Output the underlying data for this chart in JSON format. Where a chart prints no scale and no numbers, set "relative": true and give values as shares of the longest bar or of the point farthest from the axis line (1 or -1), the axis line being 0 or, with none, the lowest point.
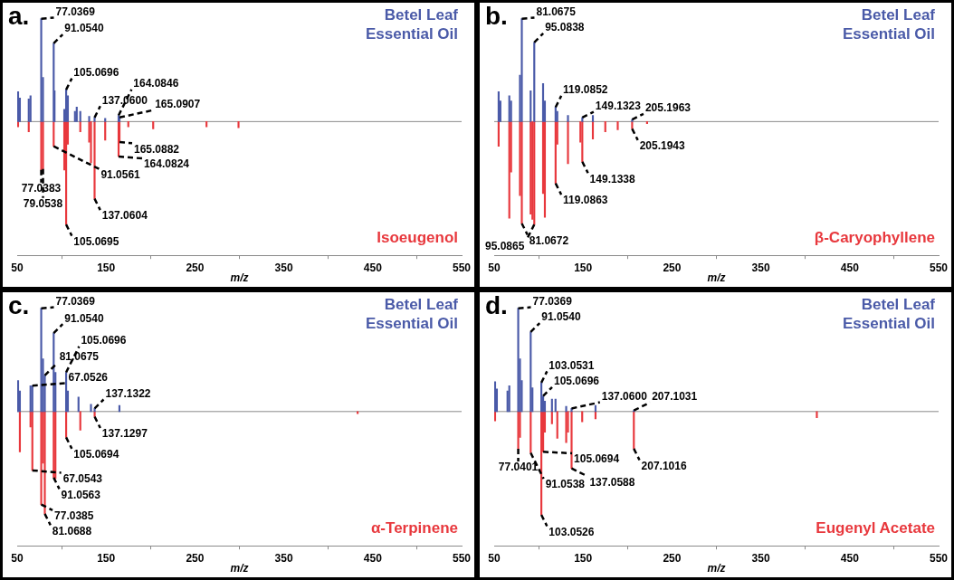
{
  "chart_data": [
    {
      "type": "bar",
      "title": "a.",
      "xlabel": "m/z",
      "relative": true,
      "xlim": [
        50,
        550
      ],
      "xticks": [
        50,
        150,
        250,
        350,
        450,
        550
      ],
      "series": [
        {
          "name": "Betel Leaf Essential Oil",
          "color": "#4a5aa8",
          "x": [
            51,
            53,
            63,
            65,
            77.0369,
            79,
            91.054,
            92,
            103,
            105.0696,
            107,
            115,
            117,
            121,
            131,
            137.06,
            149,
            164.0846,
            165.0907
          ],
          "values": [
            0.29,
            0.23,
            0.22,
            0.25,
            1,
            0.43,
            0.76,
            0.3,
            0.12,
            0.31,
            0.25,
            0.1,
            0.14,
            0.1,
            0.05,
            0.04,
            0.03,
            0.06,
            0.04
          ]
        },
        {
          "name": "Isoeugenol",
          "color": "#e8383d",
          "x": [
            51,
            63,
            77.0383,
            79.0538,
            91.0561,
            103,
            105.0695,
            107,
            121,
            131,
            133,
            137.0604,
            149,
            164.0824,
            165.0882,
            175,
            203,
            263,
            299
          ],
          "values": [
            -0.05,
            -0.1,
            -0.47,
            -0.46,
            -0.24,
            -0.47,
            -1,
            -0.22,
            -0.1,
            -0.2,
            -0.4,
            -0.75,
            -0.18,
            -0.34,
            -0.2,
            -0.05,
            -0.07,
            -0.05,
            -0.06
          ]
        }
      ],
      "annotations": [
        {
          "text": "77.0369",
          "x": 77.0369,
          "y": 1
        },
        {
          "text": "91.0540",
          "x": 91.054,
          "y": 0.76
        },
        {
          "text": "105.0696",
          "x": 105.0696,
          "y": 0.31
        },
        {
          "text": "137.0600",
          "x": 137.06,
          "y": 0.04
        },
        {
          "text": "164.0846",
          "x": 164.0846,
          "y": 0.06
        },
        {
          "text": "165.0907",
          "x": 165.0907,
          "y": 0.04
        },
        {
          "text": "105.0695",
          "x": 105.0695,
          "y": -1
        },
        {
          "text": "137.0604",
          "x": 137.0604,
          "y": -0.75
        },
        {
          "text": "77.0383",
          "x": 77.0383,
          "y": -0.47
        },
        {
          "text": "79.0538",
          "x": 79.0538,
          "y": -0.46
        },
        {
          "text": "91.0561",
          "x": 91.0561,
          "y": -0.24
        },
        {
          "text": "164.0824",
          "x": 164.0824,
          "y": -0.34
        },
        {
          "text": "165.0882",
          "x": 165.0882,
          "y": -0.2
        }
      ]
    },
    {
      "type": "bar",
      "title": "b.",
      "xlabel": "m/z",
      "relative": true,
      "xlim": [
        50,
        550
      ],
      "xticks": [
        50,
        150,
        250,
        350,
        450,
        550
      ],
      "series": [
        {
          "name": "Betel Leaf Essential Oil",
          "color": "#4a5aa8",
          "x": [
            55,
            57,
            67,
            69,
            79,
            81.0675,
            91,
            95.0838,
            105,
            107,
            119.0852,
            121,
            133,
            149.1323,
            161,
            205.1963
          ],
          "values": [
            0.29,
            0.2,
            0.25,
            0.2,
            0.45,
            1,
            0.3,
            0.77,
            0.37,
            0.2,
            0.14,
            0.1,
            0.06,
            0.04,
            0.06,
            0.02
          ]
        },
        {
          "name": "β-Caryophyllene",
          "color": "#e8383d",
          "x": [
            55,
            67,
            69,
            79,
            81.0672,
            91,
            93,
            95.0865,
            105,
            107,
            119.0863,
            121,
            133,
            147,
            149.1338,
            161,
            175,
            189,
            205.1943,
            222
          ],
          "values": [
            -0.24,
            -0.94,
            -0.49,
            -0.72,
            -0.99,
            -0.9,
            -0.95,
            -1,
            -0.7,
            -0.93,
            -0.6,
            -0.22,
            -0.41,
            -0.2,
            -0.39,
            -0.17,
            -0.1,
            -0.08,
            -0.07,
            -0.02
          ]
        }
      ],
      "annotations": [
        {
          "text": "81.0675",
          "x": 81.0675,
          "y": 1
        },
        {
          "text": "95.0838",
          "x": 95.0838,
          "y": 0.77
        },
        {
          "text": "119.0852",
          "x": 119.0852,
          "y": 0.14
        },
        {
          "text": "149.1323",
          "x": 149.1323,
          "y": 0.04
        },
        {
          "text": "205.1963",
          "x": 205.1963,
          "y": 0.02
        },
        {
          "text": "81.0672",
          "x": 81.0672,
          "y": -0.99
        },
        {
          "text": "95.0865",
          "x": 95.0865,
          "y": -1
        },
        {
          "text": "119.0863",
          "x": 119.0863,
          "y": -0.6
        },
        {
          "text": "149.1338",
          "x": 149.1338,
          "y": -0.39
        },
        {
          "text": "205.1943",
          "x": 205.1943,
          "y": -0.07
        }
      ]
    },
    {
      "type": "bar",
      "title": "c.",
      "xlabel": "m/z",
      "relative": true,
      "xlim": [
        50,
        550
      ],
      "xticks": [
        50,
        150,
        250,
        350,
        450,
        550
      ],
      "series": [
        {
          "name": "Betel Leaf Essential Oil",
          "color": "#4a5aa8",
          "x": [
            51,
            53,
            65,
            67.0526,
            77.0369,
            79,
            81.0675,
            91.054,
            93,
            105.0696,
            107,
            119,
            133,
            137.1322,
            165
          ],
          "values": [
            0.3,
            0.2,
            0.25,
            0.25,
            1,
            0.51,
            0.35,
            0.76,
            0.38,
            0.38,
            0.2,
            0.14,
            0.07,
            0.03,
            0.06
          ]
        },
        {
          "name": "α-Terpinene",
          "color": "#e8383d",
          "x": [
            53,
            65,
            67.0543,
            77.0385,
            79,
            81.0688,
            91.0563,
            93,
            105.0694,
            121,
            137.1297,
            433
          ],
          "values": [
            -0.39,
            -0.15,
            -0.57,
            -0.9,
            -0.5,
            -0.99,
            -0.64,
            -0.65,
            -0.25,
            -0.18,
            -0.05,
            -0.02
          ]
        }
      ],
      "annotations": [
        {
          "text": "77.0369",
          "x": 77.0369,
          "y": 1
        },
        {
          "text": "91.0540",
          "x": 91.054,
          "y": 0.76
        },
        {
          "text": "81.0675",
          "x": 81.0675,
          "y": 0.35
        },
        {
          "text": "67.0526",
          "x": 67.0526,
          "y": 0.25
        },
        {
          "text": "105.0696",
          "x": 105.0696,
          "y": 0.38
        },
        {
          "text": "137.1322",
          "x": 137.1322,
          "y": 0.03
        },
        {
          "text": "81.0688",
          "x": 81.0688,
          "y": -0.99
        },
        {
          "text": "77.0385",
          "x": 77.0385,
          "y": -0.9
        },
        {
          "text": "91.0563",
          "x": 91.0563,
          "y": -0.64
        },
        {
          "text": "67.0543",
          "x": 67.0543,
          "y": -0.57
        },
        {
          "text": "105.0694",
          "x": 105.0694,
          "y": -0.25
        },
        {
          "text": "137.1297",
          "x": 137.1297,
          "y": -0.05
        }
      ]
    },
    {
      "type": "bar",
      "title": "d.",
      "xlabel": "m/z",
      "relative": true,
      "xlim": [
        50,
        550
      ],
      "xticks": [
        50,
        150,
        250,
        350,
        450,
        550
      ],
      "series": [
        {
          "name": "Betel Leaf Essential Oil",
          "color": "#4a5aa8",
          "x": [
            51,
            53,
            65,
            67,
            77.0369,
            79,
            81,
            91.054,
            93,
            103.0531,
            105.0696,
            107,
            115,
            119,
            131,
            137.06,
            164,
            207.1031
          ],
          "values": [
            0.29,
            0.22,
            0.2,
            0.25,
            1,
            0.51,
            0.3,
            0.77,
            0.23,
            0.28,
            0.15,
            0.1,
            0.12,
            0.12,
            0.05,
            0.03,
            0.06,
            0.01
          ]
        },
        {
          "name": "Eugenyl Acetate",
          "color": "#e8383d",
          "x": [
            51,
            77.0401,
            79,
            91.0538,
            103.0526,
            105.0694,
            107,
            115,
            121,
            131,
            133,
            137.0588,
            149,
            164,
            207.1016,
            413
          ],
          "values": [
            -0.09,
            -0.36,
            -0.25,
            -0.4,
            -1,
            -0.39,
            -0.2,
            -0.12,
            -0.26,
            -0.3,
            -0.2,
            -0.55,
            -0.1,
            -0.07,
            -0.36,
            -0.06
          ]
        }
      ],
      "annotations": [
        {
          "text": "77.0369",
          "x": 77.0369,
          "y": 1
        },
        {
          "text": "91.0540",
          "x": 91.054,
          "y": 0.77
        },
        {
          "text": "103.0531",
          "x": 103.0531,
          "y": 0.28
        },
        {
          "text": "105.0696",
          "x": 105.0696,
          "y": 0.15
        },
        {
          "text": "137.0600",
          "x": 137.06,
          "y": 0.03
        },
        {
          "text": "207.1031",
          "x": 207.1031,
          "y": 0.01
        },
        {
          "text": "103.0526",
          "x": 103.0526,
          "y": -1
        },
        {
          "text": "77.0401",
          "x": 77.0401,
          "y": -0.36
        },
        {
          "text": "91.0538",
          "x": 91.0538,
          "y": -0.4
        },
        {
          "text": "105.0694",
          "x": 105.0694,
          "y": -0.39
        },
        {
          "text": "137.0588",
          "x": 137.0588,
          "y": -0.55
        },
        {
          "text": "207.1016",
          "x": 207.1016,
          "y": -0.36
        }
      ]
    }
  ]
}
